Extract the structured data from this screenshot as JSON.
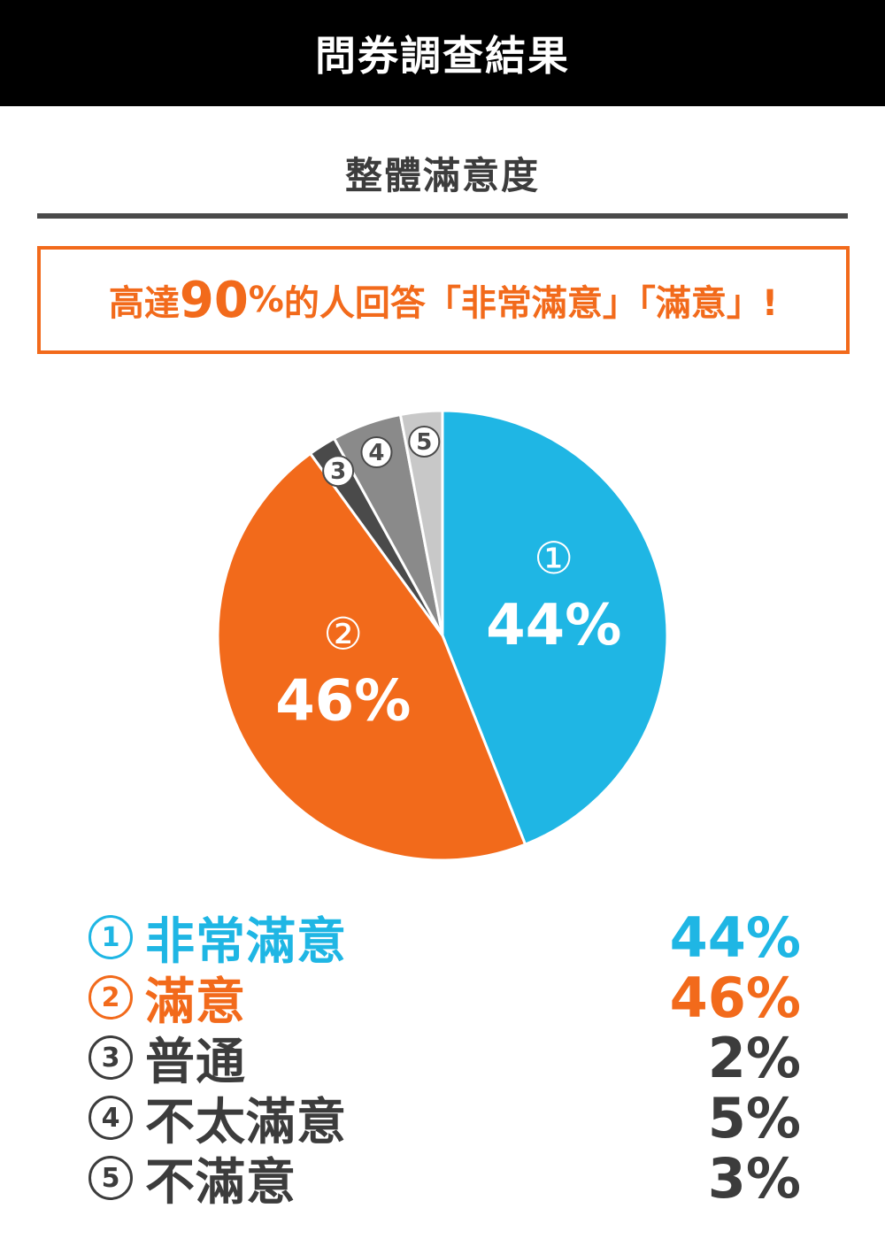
{
  "header": {
    "title": "問券調查結果"
  },
  "subtitle": "整體滿意度",
  "highlight": {
    "pre": "高達",
    "number": "90",
    "unit": "%",
    "post": "的人回答「非常滿意」「滿意」!"
  },
  "colors": {
    "very_satisfied": "#1fb6e4",
    "satisfied": "#f26a1b",
    "neutral": "#4a4a4a",
    "dissatisfied": "#8a8a8a",
    "very_dissatisfied": "#c8c8c8",
    "text_dark": "#3c3c3c"
  },
  "chart_data": {
    "type": "pie",
    "categories": [
      "非常滿意",
      "滿意",
      "普通",
      "不太滿意",
      "不滿意"
    ],
    "markers": [
      "①",
      "②",
      "③",
      "④",
      "⑤"
    ],
    "values": [
      44,
      46,
      2,
      5,
      3
    ],
    "value_labels": [
      "44%",
      "46%",
      "2%",
      "5%",
      "3%"
    ],
    "slice_labels": [
      "44%",
      "46%",
      "",
      "",
      ""
    ],
    "colors": [
      "#1fb6e4",
      "#f26a1b",
      "#4a4a4a",
      "#8a8a8a",
      "#c8c8c8"
    ],
    "title": "整體滿意度",
    "legend": "bottom"
  }
}
